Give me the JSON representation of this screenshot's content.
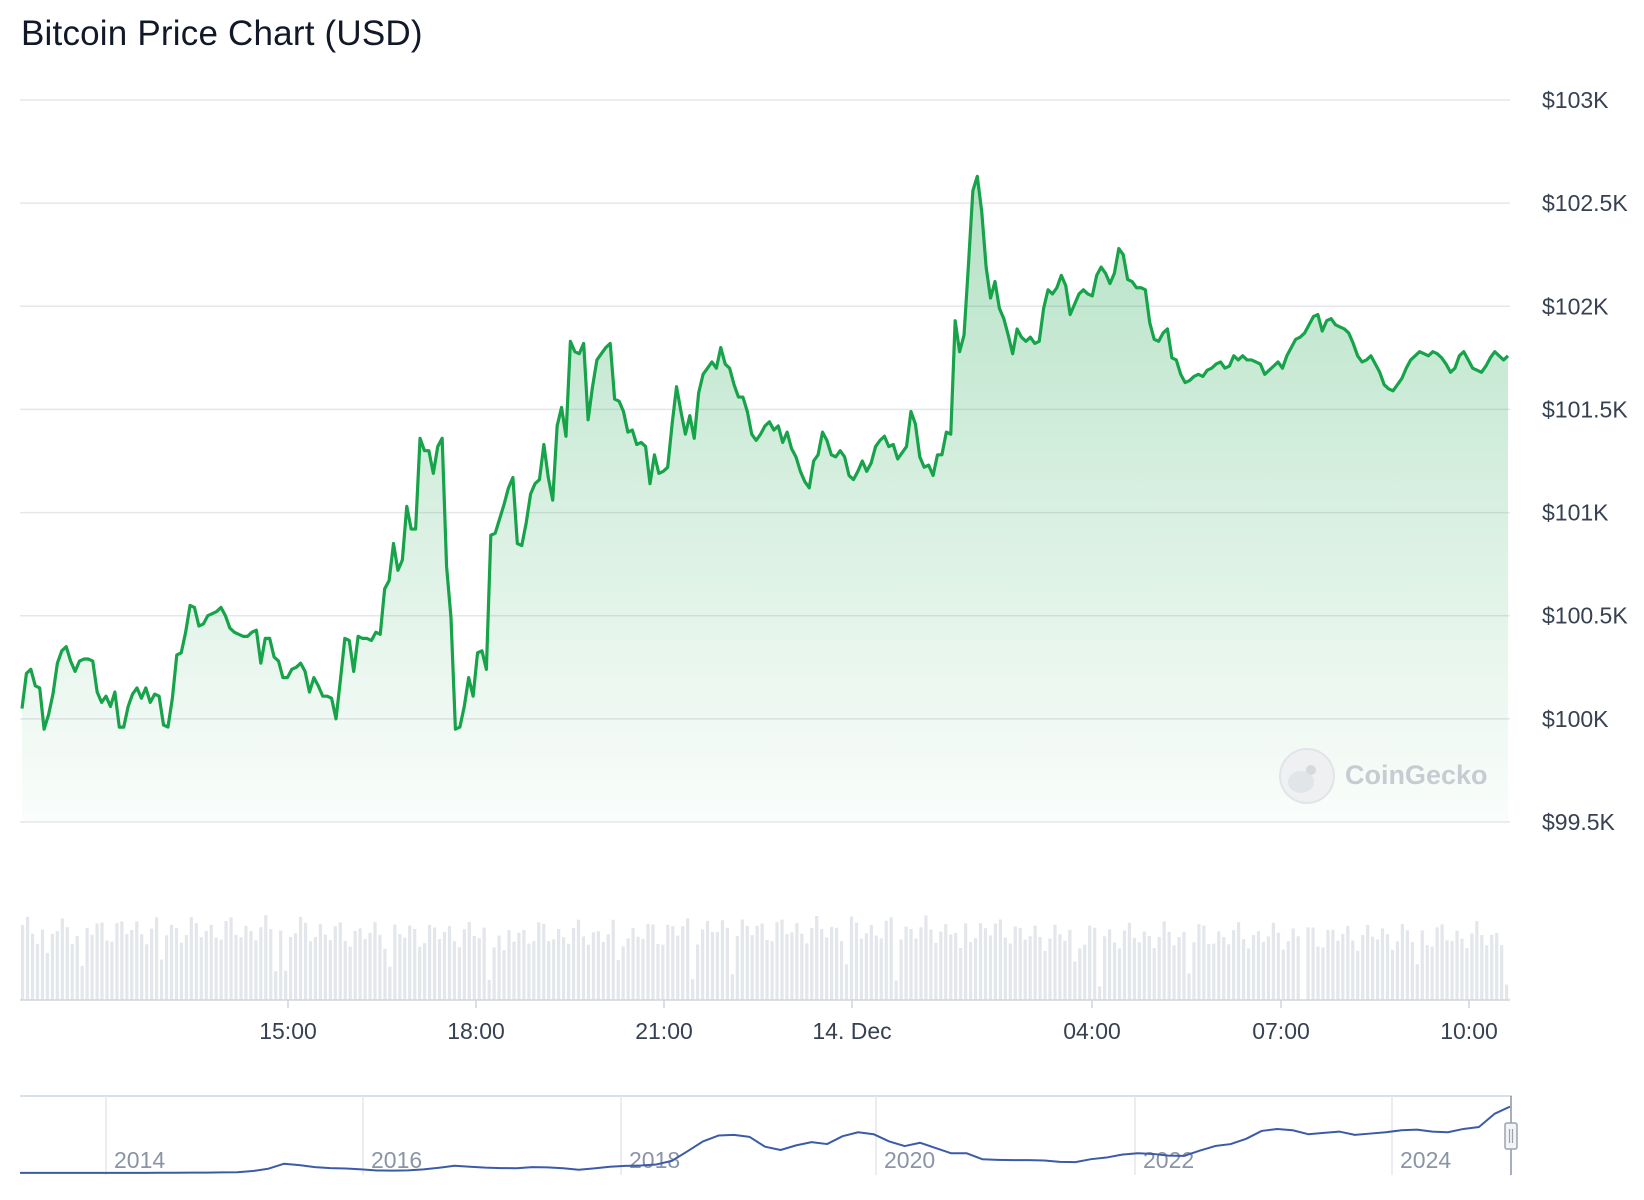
{
  "title": "Bitcoin Price Chart (USD)",
  "watermark": "CoinGecko",
  "colors": {
    "line": "#16a34a",
    "area_top": "#16a34a",
    "grid": "#e5e7eb",
    "volume": "#e3e6ea",
    "navigator_line": "#3b5ba9"
  },
  "chart_data": {
    "type": "area",
    "x_tick_labels": [
      "15:00",
      "18:00",
      "21:00",
      "14. Dec",
      "04:00",
      "07:00",
      "10:00"
    ],
    "y_tick_labels": [
      "$103K",
      "$102.5K",
      "$102K",
      "$101.5K",
      "$101K",
      "$100.5K",
      "$100K",
      "$99.5K"
    ],
    "ylim": [
      99500,
      103000
    ],
    "y_ticks": [
      103000,
      102500,
      102000,
      101500,
      101000,
      100500,
      100000,
      99500
    ],
    "grid": true,
    "series": [
      {
        "values": [
          100050,
          100220,
          100240,
          100160,
          100150,
          99950,
          100020,
          100120,
          100270,
          100330,
          100350,
          100280,
          100230,
          100280,
          100290,
          100290,
          100280,
          100130,
          100080,
          100110,
          100060,
          100130,
          99960,
          99960,
          100060,
          100120,
          100150,
          100100,
          100150,
          100080,
          100120,
          100110,
          99970,
          99960,
          100100,
          100310,
          100320,
          100420,
          100550,
          100540,
          100450,
          100460,
          100500,
          100510,
          100520,
          100540,
          100500,
          100440,
          100420,
          100410,
          100400,
          100400,
          100420,
          100430,
          100270,
          100390,
          100390,
          100300,
          100280,
          100200,
          100200,
          100240,
          100250,
          100270,
          100230,
          100130,
          100200,
          100160,
          100110,
          100110,
          100100,
          100000,
          100190,
          100390,
          100380,
          100230,
          100400,
          100390,
          100390,
          100380,
          100420,
          100410,
          100630,
          100670,
          100850,
          100720,
          100770,
          101030,
          100920,
          100920,
          101360,
          101300,
          101300,
          101190,
          101320,
          101360,
          100740,
          100490,
          99950,
          99960,
          100060,
          100200,
          100110,
          100320,
          100330,
          100240,
          100890,
          100900,
          100970,
          101040,
          101120,
          101170,
          100850,
          100840,
          100950,
          101090,
          101140,
          101160,
          101330,
          101170,
          101060,
          101420,
          101510,
          101370,
          101830,
          101780,
          101770,
          101820,
          101450,
          101610,
          101740,
          101770,
          101800,
          101820,
          101550,
          101540,
          101490,
          101390,
          101400,
          101330,
          101340,
          101320,
          101140,
          101280,
          101190,
          101200,
          101220,
          101430,
          101610,
          101490,
          101380,
          101470,
          101360,
          101580,
          101670,
          101700,
          101730,
          101700,
          101800,
          101720,
          101700,
          101620,
          101560,
          101560,
          101490,
          101380,
          101350,
          101380,
          101420,
          101440,
          101400,
          101420,
          101340,
          101390,
          101310,
          101270,
          101200,
          101150,
          101120,
          101250,
          101280,
          101390,
          101350,
          101280,
          101270,
          101300,
          101270,
          101180,
          101160,
          101200,
          101250,
          101200,
          101240,
          101320,
          101350,
          101370,
          101320,
          101330,
          101260,
          101290,
          101320,
          101490,
          101430,
          101270,
          101220,
          101230,
          101180,
          101280,
          101280,
          101390,
          101380,
          101930,
          101780,
          101860,
          102200,
          102560,
          102630,
          102460,
          102190,
          102040,
          102120,
          101990,
          101940,
          101860,
          101770,
          101890,
          101850,
          101830,
          101850,
          101820,
          101830,
          101990,
          102080,
          102060,
          102090,
          102150,
          102100,
          101960,
          102010,
          102060,
          102080,
          102060,
          102050,
          102150,
          102190,
          102160,
          102110,
          102160,
          102280,
          102250,
          102130,
          102120,
          102090,
          102090,
          102080,
          101920,
          101840,
          101830,
          101870,
          101890,
          101750,
          101740,
          101670,
          101630,
          101640,
          101660,
          101670,
          101660,
          101690,
          101700,
          101720,
          101730,
          101700,
          101710,
          101760,
          101740,
          101760,
          101740,
          101740,
          101730,
          101720,
          101670,
          101690,
          101710,
          101730,
          101700,
          101760,
          101800,
          101840,
          101850,
          101870,
          101910,
          101950,
          101960,
          101880,
          101930,
          101940,
          101910,
          101900,
          101890,
          101870,
          101820,
          101760,
          101730,
          101740,
          101760,
          101720,
          101680,
          101620,
          101600,
          101590,
          101620,
          101650,
          101700,
          101740,
          101760,
          101780,
          101770,
          101760,
          101780,
          101770,
          101750,
          101720,
          101680,
          101700,
          101760,
          101780,
          101740,
          101700,
          101690,
          101680,
          101710,
          101750,
          101780,
          101760,
          101740,
          101760
        ]
      }
    ],
    "navigator": {
      "x_tick_labels": [
        "2014",
        "2016",
        "2018",
        "2020",
        "2022",
        "2024"
      ],
      "values": [
        100,
        110,
        130,
        140,
        150,
        170,
        200,
        240,
        260,
        300,
        380,
        480,
        600,
        900,
        1200,
        3000,
        6500,
        14000,
        12000,
        9000,
        7500,
        6800,
        5500,
        3800,
        3600,
        4000,
        5500,
        8000,
        11000,
        9500,
        8200,
        7500,
        7300,
        9000,
        8600,
        7200,
        5000,
        7000,
        9500,
        10800,
        11500,
        13000,
        18500,
        33000,
        48000,
        57000,
        58000,
        55000,
        40000,
        35000,
        42000,
        47000,
        44000,
        56000,
        62000,
        59000,
        48000,
        41000,
        46000,
        38000,
        30000,
        30000,
        21000,
        20000,
        19500,
        19500,
        19000,
        17000,
        16500,
        21000,
        23500,
        28000,
        30000,
        29000,
        26500,
        26000,
        34000,
        41000,
        44000,
        52000,
        64000,
        67000,
        65000,
        59000,
        61000,
        63000,
        58000,
        60000,
        62000,
        65000,
        66000,
        63000,
        62000,
        67000,
        70000,
        90000,
        101000
      ],
      "ylim": [
        0,
        108000
      ],
      "selection": "last-day"
    },
    "volume": "bars"
  }
}
